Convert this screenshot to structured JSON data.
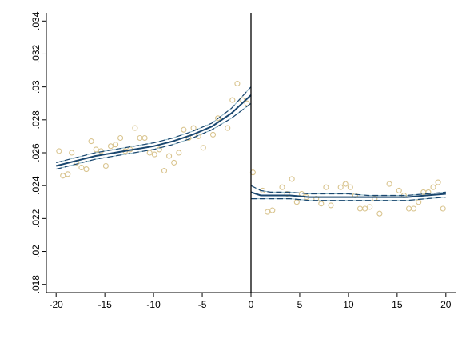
{
  "chart_data": {
    "type": "scatter",
    "title": "",
    "xlabel": "",
    "ylabel": "",
    "xlim": [
      -21,
      21
    ],
    "ylim": [
      0.0175,
      0.0345
    ],
    "xticks": [
      -20,
      -15,
      -10,
      -5,
      0,
      5,
      10,
      15,
      20
    ],
    "xtick_labels": [
      "-20",
      "-15",
      "-10",
      "-5",
      "0",
      "5",
      "10",
      "15",
      "20"
    ],
    "yticks": [
      0.018,
      0.02,
      0.022,
      0.024,
      0.026,
      0.028,
      0.03,
      0.032,
      0.034
    ],
    "ytick_labels": [
      ".018",
      ".02",
      ".022",
      ".024",
      ".026",
      ".028",
      ".03",
      ".032",
      ".034"
    ],
    "grid": false,
    "legend": "none",
    "cutoff_line": 0,
    "colors": {
      "scatter_marker": "#d9c48e",
      "fit_line": "#1a476f",
      "ci_dashed": "#1a476f",
      "ci_light": "#90b8c8",
      "cutoff": "#000000",
      "axes": "#000000"
    },
    "series": [
      {
        "role": "binned-means",
        "points": [
          [
            -19.7,
            0.0261
          ],
          [
            -19.3,
            0.0246
          ],
          [
            -18.8,
            0.0247
          ],
          [
            -18.4,
            0.026
          ],
          [
            -17.9,
            0.0254
          ],
          [
            -17.4,
            0.0251
          ],
          [
            -16.9,
            0.025
          ],
          [
            -16.4,
            0.0267
          ],
          [
            -15.9,
            0.0262
          ],
          [
            -15.4,
            0.0261
          ],
          [
            -14.9,
            0.0252
          ],
          [
            -14.4,
            0.0264
          ],
          [
            -13.9,
            0.0265
          ],
          [
            -13.4,
            0.0269
          ],
          [
            -12.9,
            0.0261
          ],
          [
            -12.4,
            0.0262
          ],
          [
            -11.9,
            0.0275
          ],
          [
            -11.4,
            0.0269
          ],
          [
            -10.9,
            0.0269
          ],
          [
            -10.4,
            0.026
          ],
          [
            -9.9,
            0.0259
          ],
          [
            -9.4,
            0.0262
          ],
          [
            -8.9,
            0.0249
          ],
          [
            -8.4,
            0.0258
          ],
          [
            -7.9,
            0.0254
          ],
          [
            -7.4,
            0.026
          ],
          [
            -6.9,
            0.0274
          ],
          [
            -6.4,
            0.0269
          ],
          [
            -5.9,
            0.0275
          ],
          [
            -5.4,
            0.027
          ],
          [
            -4.9,
            0.0263
          ],
          [
            -3.9,
            0.0271
          ],
          [
            -3.4,
            0.0281
          ],
          [
            -2.4,
            0.0275
          ],
          [
            -1.9,
            0.0292
          ],
          [
            -1.4,
            0.0302
          ],
          [
            -0.9,
            0.0292
          ],
          [
            -0.4,
            0.029
          ],
          [
            0.2,
            0.0248
          ],
          [
            1.2,
            0.0237
          ],
          [
            1.7,
            0.0224
          ],
          [
            2.2,
            0.0225
          ],
          [
            3.2,
            0.0239
          ],
          [
            3.7,
            0.0235
          ],
          [
            4.2,
            0.0244
          ],
          [
            4.7,
            0.023
          ],
          [
            5.2,
            0.0235
          ],
          [
            5.7,
            0.0233
          ],
          [
            6.7,
            0.0232
          ],
          [
            7.2,
            0.0229
          ],
          [
            7.7,
            0.0239
          ],
          [
            8.2,
            0.0228
          ],
          [
            9.2,
            0.0239
          ],
          [
            9.7,
            0.0241
          ],
          [
            10.2,
            0.0239
          ],
          [
            10.7,
            0.0234
          ],
          [
            11.2,
            0.0226
          ],
          [
            11.7,
            0.0226
          ],
          [
            12.2,
            0.0227
          ],
          [
            12.7,
            0.0232
          ],
          [
            13.2,
            0.0223
          ],
          [
            14.2,
            0.0241
          ],
          [
            15.2,
            0.0237
          ],
          [
            15.7,
            0.0234
          ],
          [
            16.2,
            0.0226
          ],
          [
            16.7,
            0.0226
          ],
          [
            17.2,
            0.023
          ],
          [
            17.7,
            0.0236
          ],
          [
            18.2,
            0.0236
          ],
          [
            18.7,
            0.0239
          ],
          [
            19.2,
            0.0242
          ],
          [
            19.7,
            0.0226
          ]
        ]
      },
      {
        "role": "fitted-left",
        "points": [
          [
            -20,
            0.0252
          ],
          [
            -18,
            0.0255
          ],
          [
            -16,
            0.0258
          ],
          [
            -14,
            0.026
          ],
          [
            -12,
            0.0262
          ],
          [
            -10,
            0.0264
          ],
          [
            -8,
            0.0267
          ],
          [
            -6,
            0.0271
          ],
          [
            -4,
            0.0276
          ],
          [
            -2,
            0.0284
          ],
          [
            0,
            0.0295
          ]
        ]
      },
      {
        "role": "ci-left-upper",
        "points": [
          [
            -20,
            0.0254
          ],
          [
            -18,
            0.0257
          ],
          [
            -16,
            0.026
          ],
          [
            -14,
            0.0262
          ],
          [
            -12,
            0.0264
          ],
          [
            -10,
            0.0266
          ],
          [
            -8,
            0.0269
          ],
          [
            -6,
            0.0273
          ],
          [
            -4,
            0.0278
          ],
          [
            -2,
            0.0287
          ],
          [
            0,
            0.03
          ]
        ]
      },
      {
        "role": "ci-left-lower",
        "points": [
          [
            -20,
            0.025
          ],
          [
            -18,
            0.0253
          ],
          [
            -16,
            0.0256
          ],
          [
            -14,
            0.0258
          ],
          [
            -12,
            0.026
          ],
          [
            -10,
            0.0262
          ],
          [
            -8,
            0.0265
          ],
          [
            -6,
            0.0269
          ],
          [
            -4,
            0.0274
          ],
          [
            -2,
            0.0281
          ],
          [
            0,
            0.029
          ]
        ]
      },
      {
        "role": "fitted-right",
        "points": [
          [
            0,
            0.0236
          ],
          [
            1,
            0.0234
          ],
          [
            2,
            0.0234
          ],
          [
            4,
            0.0234
          ],
          [
            6,
            0.0233
          ],
          [
            8,
            0.0233
          ],
          [
            10,
            0.0233
          ],
          [
            12,
            0.0233
          ],
          [
            14,
            0.0233
          ],
          [
            16,
            0.0233
          ],
          [
            18,
            0.0234
          ],
          [
            20,
            0.0235
          ]
        ]
      },
      {
        "role": "ci-right-upper",
        "points": [
          [
            0,
            0.024
          ],
          [
            1,
            0.0237
          ],
          [
            2,
            0.0236
          ],
          [
            4,
            0.0236
          ],
          [
            6,
            0.0235
          ],
          [
            8,
            0.0235
          ],
          [
            10,
            0.0235
          ],
          [
            12,
            0.0234
          ],
          [
            14,
            0.0234
          ],
          [
            16,
            0.0234
          ],
          [
            18,
            0.0235
          ],
          [
            20,
            0.0236
          ]
        ]
      },
      {
        "role": "ci-right-lower",
        "points": [
          [
            0,
            0.0232
          ],
          [
            1,
            0.0232
          ],
          [
            2,
            0.0232
          ],
          [
            4,
            0.0232
          ],
          [
            6,
            0.0231
          ],
          [
            8,
            0.0231
          ],
          [
            10,
            0.0231
          ],
          [
            12,
            0.0231
          ],
          [
            14,
            0.0231
          ],
          [
            16,
            0.0231
          ],
          [
            18,
            0.0232
          ],
          [
            20,
            0.0233
          ]
        ]
      }
    ]
  }
}
